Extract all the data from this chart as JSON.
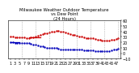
{
  "title": "Milwaukee Weather Outdoor Temperature vs Dew Point (24 Hours)",
  "temp_color": "#cc0000",
  "dew_color": "#0000bb",
  "background_color": "#ffffff",
  "grid_color": "#888888",
  "temp_x": [
    1,
    2,
    3,
    4,
    5,
    6,
    7,
    8,
    9,
    10,
    11,
    12,
    13,
    14,
    15,
    16,
    17,
    18,
    19,
    20,
    21,
    22,
    23,
    24,
    25,
    26,
    27,
    28,
    29,
    30,
    31,
    32,
    33,
    34,
    35,
    36,
    37,
    38,
    39,
    40,
    41,
    42,
    43,
    44,
    45,
    46,
    47,
    48
  ],
  "temp_y": [
    30,
    30,
    29,
    29,
    29,
    29,
    29,
    28,
    28,
    29,
    29,
    30,
    32,
    33,
    35,
    36,
    37,
    38,
    39,
    40,
    41,
    41,
    40,
    39,
    38,
    37,
    35,
    34,
    33,
    32,
    31,
    30,
    29,
    28,
    27,
    27,
    27,
    26,
    25,
    24,
    23,
    23,
    23,
    23,
    24,
    25,
    26,
    27
  ],
  "dew_x": [
    1,
    2,
    3,
    4,
    5,
    6,
    7,
    8,
    9,
    10,
    11,
    12,
    13,
    14,
    15,
    16,
    17,
    18,
    19,
    20,
    21,
    22,
    23,
    24,
    25,
    26,
    27,
    28,
    29,
    30,
    31,
    32,
    33,
    34,
    35,
    36,
    37,
    38,
    39,
    40,
    41,
    42,
    43,
    44,
    45,
    46,
    47,
    48
  ],
  "dew_y": [
    20,
    20,
    19,
    19,
    19,
    19,
    18,
    18,
    18,
    17,
    16,
    15,
    14,
    13,
    12,
    11,
    10,
    10,
    9,
    9,
    9,
    8,
    7,
    7,
    7,
    7,
    7,
    7,
    6,
    6,
    6,
    6,
    5,
    5,
    5,
    5,
    5,
    4,
    4,
    3,
    3,
    3,
    3,
    4,
    5,
    6,
    7,
    8
  ],
  "temp_line_x": [
    9,
    14
  ],
  "temp_line_y": [
    29,
    29
  ],
  "dew_line_x": [
    1,
    5
  ],
  "dew_line_y": [
    20,
    20
  ],
  "ylim": [
    -10,
    60
  ],
  "xlim": [
    0,
    49
  ],
  "yticks": [
    -10,
    0,
    10,
    20,
    30,
    40,
    50,
    60
  ],
  "vgrid_positions": [
    6,
    12,
    18,
    24,
    30,
    36,
    42,
    48
  ],
  "xticks": [
    1,
    3,
    5,
    7,
    9,
    11,
    13,
    15,
    17,
    19,
    21,
    23,
    25,
    27,
    29,
    31,
    33,
    35,
    37,
    39,
    41,
    43,
    45,
    47
  ],
  "xtick_labels": [
    "1",
    "3",
    "5",
    "7",
    "9",
    "11",
    "13",
    "15",
    "17",
    "19",
    "21",
    "23",
    "25",
    "27",
    "29",
    "31",
    "33",
    "35",
    "37",
    "39",
    "41",
    "43",
    "45",
    "47"
  ],
  "marker_size": 1.5,
  "tick_fontsize": 3.5,
  "title_fontsize": 3.8,
  "line_width": 0.9
}
